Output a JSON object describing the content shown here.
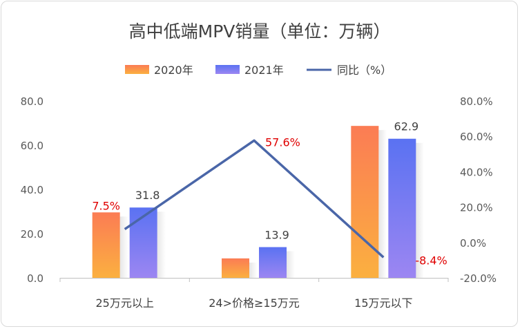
{
  "chart_data": {
    "type": "bar",
    "title": "高中低端MPV销量（单位：万辆）",
    "categories": [
      "25万元以上",
      "24>价格≥15万元",
      "15万元以下"
    ],
    "series": [
      {
        "name": "2020年",
        "type": "bar",
        "axis": "left",
        "values": [
          29.6,
          8.8,
          68.7
        ],
        "colors": [
          "#fbb040",
          "#fb7c54"
        ]
      },
      {
        "name": "2021年",
        "type": "bar",
        "axis": "left",
        "values": [
          31.8,
          13.9,
          62.9
        ],
        "colors": [
          "#9c86f2",
          "#5a72f2"
        ]
      },
      {
        "name": "同比（%）",
        "type": "line",
        "axis": "right",
        "values": [
          7.5,
          57.6,
          -8.4
        ],
        "color": "#4a66a8"
      }
    ],
    "bar_labels_2021": [
      "31.8",
      "13.9",
      "62.9"
    ],
    "yoy_labels": [
      "7.5%",
      "57.6%",
      "-8.4%"
    ],
    "y_left": {
      "min": 0,
      "max": 80,
      "ticks": [
        "0.0",
        "20.0",
        "40.0",
        "60.0",
        "80.0"
      ]
    },
    "y_right": {
      "min": -20,
      "max": 80,
      "ticks": [
        "-20.0%",
        "0.0%",
        "20.0%",
        "40.0%",
        "60.0%",
        "80.0%"
      ]
    },
    "legend_position": "top",
    "grid": false
  }
}
